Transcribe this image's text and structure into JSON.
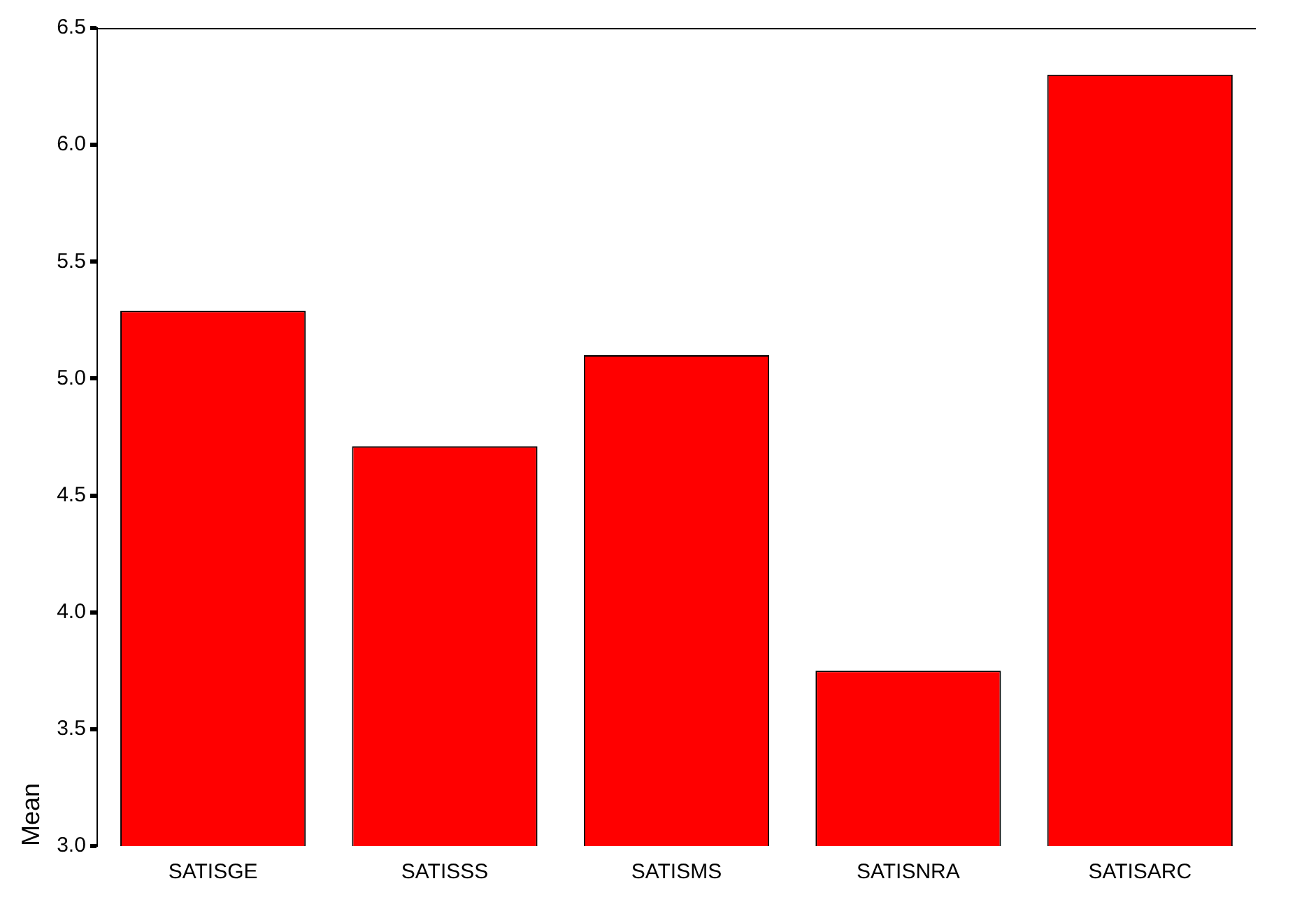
{
  "chart_data": {
    "type": "bar",
    "ylabel": "Mean",
    "categories": [
      "SATISGE",
      "SATISSS",
      "SATISMS",
      "SATISNRA",
      "SATISARC"
    ],
    "values": [
      5.29,
      4.71,
      5.1,
      3.75,
      6.3
    ],
    "color": "#ff0000",
    "ylim": [
      3.0,
      6.5
    ],
    "yticks": [
      {
        "value": 3,
        "label": "3.0"
      },
      {
        "value": 3.5,
        "label": "3.5"
      },
      {
        "value": 4,
        "label": "4.0"
      },
      {
        "value": 4.5,
        "label": "4.5"
      },
      {
        "value": 5,
        "label": "5.0"
      },
      {
        "value": 5.5,
        "label": "5.5"
      },
      {
        "value": 6,
        "label": "6.0"
      },
      {
        "value": 6.5,
        "label": "6.5"
      }
    ],
    "grid": false,
    "legend": false
  }
}
